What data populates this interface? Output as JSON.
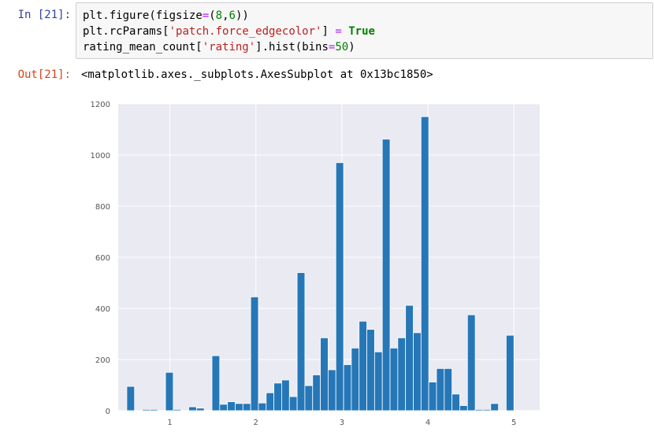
{
  "cell": {
    "in_prompt": "In [21]:",
    "out_prompt": "Out[21]:",
    "code_lines": [
      [
        {
          "t": "plt",
          "c": "tok-name"
        },
        {
          "t": ".",
          "c": "tok-punc"
        },
        {
          "t": "figure",
          "c": "tok-name"
        },
        {
          "t": "(",
          "c": "tok-punc"
        },
        {
          "t": "figsize",
          "c": "tok-name"
        },
        {
          "t": "=",
          "c": "tok-op"
        },
        {
          "t": "(",
          "c": "tok-punc"
        },
        {
          "t": "8",
          "c": "tok-num"
        },
        {
          "t": ",",
          "c": "tok-punc"
        },
        {
          "t": "6",
          "c": "tok-num"
        },
        {
          "t": "))",
          "c": "tok-punc"
        }
      ],
      [
        {
          "t": "plt",
          "c": "tok-name"
        },
        {
          "t": ".",
          "c": "tok-punc"
        },
        {
          "t": "rcParams",
          "c": "tok-name"
        },
        {
          "t": "[",
          "c": "tok-punc"
        },
        {
          "t": "'patch.force_edgecolor'",
          "c": "tok-str"
        },
        {
          "t": "] ",
          "c": "tok-punc"
        },
        {
          "t": "=",
          "c": "tok-op"
        },
        {
          "t": " ",
          "c": "tok-punc"
        },
        {
          "t": "True",
          "c": "tok-kw"
        }
      ],
      [
        {
          "t": "rating_mean_count",
          "c": "tok-name"
        },
        {
          "t": "[",
          "c": "tok-punc"
        },
        {
          "t": "'rating'",
          "c": "tok-str"
        },
        {
          "t": "]",
          "c": "tok-punc"
        },
        {
          "t": ".",
          "c": "tok-punc"
        },
        {
          "t": "hist",
          "c": "tok-name"
        },
        {
          "t": "(",
          "c": "tok-punc"
        },
        {
          "t": "bins",
          "c": "tok-name"
        },
        {
          "t": "=",
          "c": "tok-op"
        },
        {
          "t": "50",
          "c": "tok-num"
        },
        {
          "t": ")",
          "c": "tok-punc"
        }
      ]
    ],
    "output_text": "<matplotlib.axes._subplots.AxesSubplot at 0x13bc1850>"
  },
  "colors": {
    "bar": "#2677b7",
    "plot_bg": "#eaeaf2",
    "grid": "#ffffff",
    "tick_text": "#555555"
  },
  "chart_data": {
    "type": "bar",
    "title": "",
    "xlabel": "",
    "ylabel": "",
    "xlim": [
      0.4,
      5.3
    ],
    "ylim": [
      0,
      1200
    ],
    "xticks": [
      "1",
      "2",
      "3",
      "4",
      "5"
    ],
    "yticks": [
      "0",
      "200",
      "400",
      "600",
      "800",
      "1000",
      "1200"
    ],
    "grid": true,
    "bin_edges_start": 0.5,
    "bin_width": 0.09,
    "values": [
      95,
      0,
      5,
      5,
      0,
      150,
      5,
      0,
      15,
      10,
      0,
      215,
      25,
      35,
      28,
      28,
      445,
      30,
      70,
      108,
      120,
      55,
      540,
      98,
      140,
      285,
      160,
      970,
      180,
      245,
      350,
      318,
      230,
      1062,
      245,
      285,
      412,
      305,
      1150,
      112,
      165,
      165,
      65,
      20,
      375,
      5,
      5,
      28,
      0,
      295
    ]
  }
}
